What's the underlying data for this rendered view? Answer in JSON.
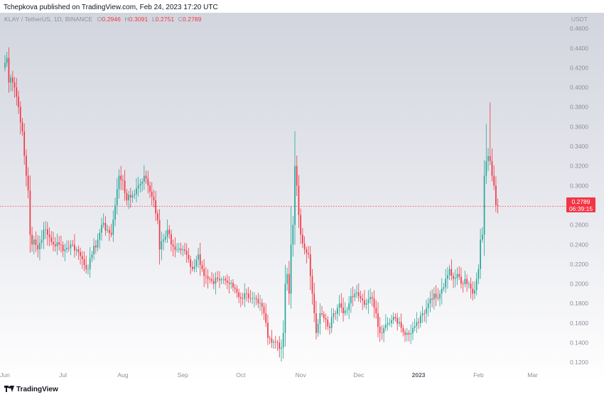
{
  "header": {
    "published_line": "Tchepkova published on TradingView.com, Feb 24, 2023 17:20 UTC"
  },
  "legend": {
    "symbol": "KLAY / TetherUS, 1D, BINANCE",
    "open_label": "O",
    "open_value": "0.2946",
    "high_label": "H",
    "high_value": "0.3091",
    "low_label": "L",
    "low_value": "0.2751",
    "close_label": "C",
    "close_value": "0.2789"
  },
  "axis": {
    "currency": "USDT"
  },
  "price_tag": {
    "price": "0.2789",
    "countdown": "06:39:15"
  },
  "footer": {
    "brand": "TradingView"
  },
  "colors": {
    "up": "#26a69a",
    "down": "#f23645",
    "current_price_line": "#f23645"
  },
  "chart_data": {
    "type": "candlestick",
    "title": "KLAY / TetherUS, 1D, BINANCE",
    "ylabel": "USDT",
    "y_scale": "linear",
    "ylim": [
      0.11,
      0.476
    ],
    "y_ticks": [
      0.12,
      0.14,
      0.16,
      0.18,
      0.2,
      0.22,
      0.24,
      0.26,
      0.28,
      0.3,
      0.32,
      0.34,
      0.36,
      0.38,
      0.4,
      0.42,
      0.44,
      0.46
    ],
    "y_tick_labels": [
      "0.1200",
      "0.1400",
      "0.1600",
      "0.1800",
      "0.2000",
      "0.2200",
      "0.2400",
      "0.2600",
      "0.2800",
      "0.3000",
      "0.3200",
      "0.3400",
      "0.3600",
      "0.3800",
      "0.4000",
      "0.4200",
      "0.4400",
      "0.4600"
    ],
    "x_ticks": [
      {
        "label": "Jun",
        "day": 0
      },
      {
        "label": "Jul",
        "day": 30
      },
      {
        "label": "Aug",
        "day": 61
      },
      {
        "label": "Sep",
        "day": 92
      },
      {
        "label": "Oct",
        "day": 122
      },
      {
        "label": "Nov",
        "day": 153
      },
      {
        "label": "Dec",
        "day": 183
      },
      {
        "label": "2023",
        "day": 214,
        "bold": true
      },
      {
        "label": "Feb",
        "day": 245
      },
      {
        "label": "Mar",
        "day": 273
      }
    ],
    "last_close": 0.2789,
    "grid": false,
    "legend": "top-left",
    "anchors": [
      [
        0,
        0.425
      ],
      [
        1,
        0.43
      ],
      [
        2,
        0.405
      ],
      [
        3,
        0.41
      ],
      [
        5,
        0.4
      ],
      [
        7,
        0.38
      ],
      [
        9,
        0.355
      ],
      [
        11,
        0.31
      ],
      [
        12,
        0.295
      ],
      [
        13,
        0.25
      ],
      [
        14,
        0.24
      ],
      [
        15,
        0.245
      ],
      [
        17,
        0.235
      ],
      [
        20,
        0.255
      ],
      [
        22,
        0.25
      ],
      [
        25,
        0.24
      ],
      [
        28,
        0.24
      ],
      [
        31,
        0.235
      ],
      [
        34,
        0.24
      ],
      [
        37,
        0.235
      ],
      [
        40,
        0.225
      ],
      [
        43,
        0.215
      ],
      [
        45,
        0.23
      ],
      [
        48,
        0.245
      ],
      [
        50,
        0.26
      ],
      [
        53,
        0.255
      ],
      [
        55,
        0.25
      ],
      [
        57,
        0.28
      ],
      [
        59,
        0.31
      ],
      [
        61,
        0.305
      ],
      [
        63,
        0.285
      ],
      [
        66,
        0.29
      ],
      [
        69,
        0.3
      ],
      [
        72,
        0.31
      ],
      [
        74,
        0.3
      ],
      [
        77,
        0.285
      ],
      [
        79,
        0.265
      ],
      [
        80,
        0.235
      ],
      [
        82,
        0.245
      ],
      [
        84,
        0.255
      ],
      [
        86,
        0.24
      ],
      [
        89,
        0.235
      ],
      [
        92,
        0.235
      ],
      [
        95,
        0.225
      ],
      [
        97,
        0.215
      ],
      [
        100,
        0.23
      ],
      [
        102,
        0.215
      ],
      [
        105,
        0.205
      ],
      [
        108,
        0.2
      ],
      [
        110,
        0.205
      ],
      [
        113,
        0.205
      ],
      [
        116,
        0.2
      ],
      [
        119,
        0.195
      ],
      [
        122,
        0.185
      ],
      [
        125,
        0.19
      ],
      [
        128,
        0.185
      ],
      [
        131,
        0.18
      ],
      [
        134,
        0.17
      ],
      [
        136,
        0.145
      ],
      [
        138,
        0.14
      ],
      [
        141,
        0.14
      ],
      [
        143,
        0.135
      ],
      [
        144,
        0.15
      ],
      [
        145,
        0.2
      ],
      [
        146,
        0.21
      ],
      [
        147,
        0.19
      ],
      [
        148,
        0.24
      ],
      [
        149,
        0.26
      ],
      [
        150,
        0.32
      ],
      [
        151,
        0.3
      ],
      [
        152,
        0.27
      ],
      [
        153,
        0.25
      ],
      [
        155,
        0.235
      ],
      [
        157,
        0.23
      ],
      [
        159,
        0.19
      ],
      [
        160,
        0.17
      ],
      [
        161,
        0.15
      ],
      [
        163,
        0.17
      ],
      [
        165,
        0.165
      ],
      [
        168,
        0.155
      ],
      [
        170,
        0.17
      ],
      [
        173,
        0.18
      ],
      [
        175,
        0.17
      ],
      [
        178,
        0.18
      ],
      [
        181,
        0.19
      ],
      [
        184,
        0.185
      ],
      [
        187,
        0.18
      ],
      [
        190,
        0.185
      ],
      [
        192,
        0.17
      ],
      [
        194,
        0.15
      ],
      [
        196,
        0.155
      ],
      [
        199,
        0.16
      ],
      [
        202,
        0.165
      ],
      [
        205,
        0.155
      ],
      [
        208,
        0.15
      ],
      [
        211,
        0.155
      ],
      [
        214,
        0.16
      ],
      [
        216,
        0.17
      ],
      [
        218,
        0.175
      ],
      [
        220,
        0.185
      ],
      [
        222,
        0.19
      ],
      [
        224,
        0.185
      ],
      [
        226,
        0.195
      ],
      [
        228,
        0.205
      ],
      [
        230,
        0.215
      ],
      [
        232,
        0.205
      ],
      [
        234,
        0.21
      ],
      [
        236,
        0.2
      ],
      [
        238,
        0.205
      ],
      [
        240,
        0.2
      ],
      [
        241,
        0.195
      ],
      [
        242,
        0.19
      ],
      [
        244,
        0.205
      ],
      [
        245,
        0.215
      ],
      [
        246,
        0.245
      ],
      [
        247,
        0.25
      ],
      [
        248,
        0.31
      ],
      [
        249,
        0.325
      ],
      [
        250,
        0.33
      ],
      [
        251,
        0.325
      ],
      [
        252,
        0.31
      ],
      [
        253,
        0.3
      ],
      [
        254,
        0.28
      ],
      [
        255,
        0.2789
      ]
    ]
  }
}
